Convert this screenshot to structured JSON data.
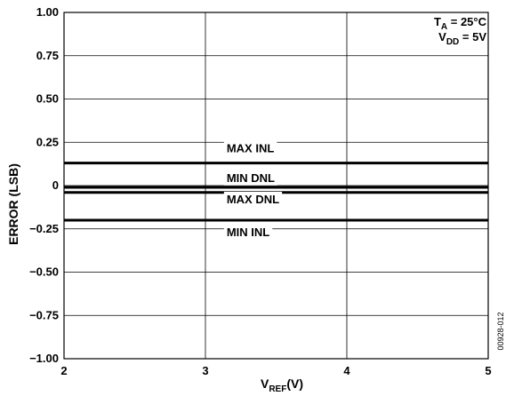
{
  "chart_data": {
    "type": "line",
    "xlabel": {
      "main": "V",
      "sub": "REF",
      "unit": "(V)"
    },
    "ylabel": "ERROR (LSB)",
    "xlim": [
      2,
      5
    ],
    "ylim": [
      -1.0,
      1.0
    ],
    "x_ticks": [
      2,
      3,
      4,
      5
    ],
    "x_tick_labels": [
      "2",
      "3",
      "4",
      "5"
    ],
    "y_ticks": [
      1.0,
      0.75,
      0.5,
      0.25,
      0,
      -0.25,
      -0.5,
      -0.75,
      -1.0
    ],
    "y_tick_labels": [
      "1.00",
      "0.75",
      "0.50",
      "0.25",
      "0",
      "−0.25",
      "−0.50",
      "−0.75",
      "−1.00"
    ],
    "grid": true,
    "series": [
      {
        "name": "MAX INL",
        "x": [
          2,
          5
        ],
        "values": [
          0.13,
          0.13
        ]
      },
      {
        "name": "MAX DNL",
        "x": [
          2,
          5
        ],
        "values": [
          -0.01,
          -0.01
        ]
      },
      {
        "name": "MIN DNL",
        "x": [
          2,
          5
        ],
        "values": [
          -0.04,
          -0.04
        ]
      },
      {
        "name": "MIN INL",
        "x": [
          2,
          5
        ],
        "values": [
          -0.2,
          -0.2
        ]
      }
    ],
    "label_anchor_x": 3.15,
    "annotations": [
      {
        "main": "T",
        "sub": "A",
        "rest": " = 25°C"
      },
      {
        "main": "V",
        "sub": "DD",
        "rest": " = 5V"
      }
    ],
    "figure_id": "00928-012"
  },
  "colors": {
    "line": "#000000",
    "grid": "#000000",
    "background": "#ffffff"
  }
}
